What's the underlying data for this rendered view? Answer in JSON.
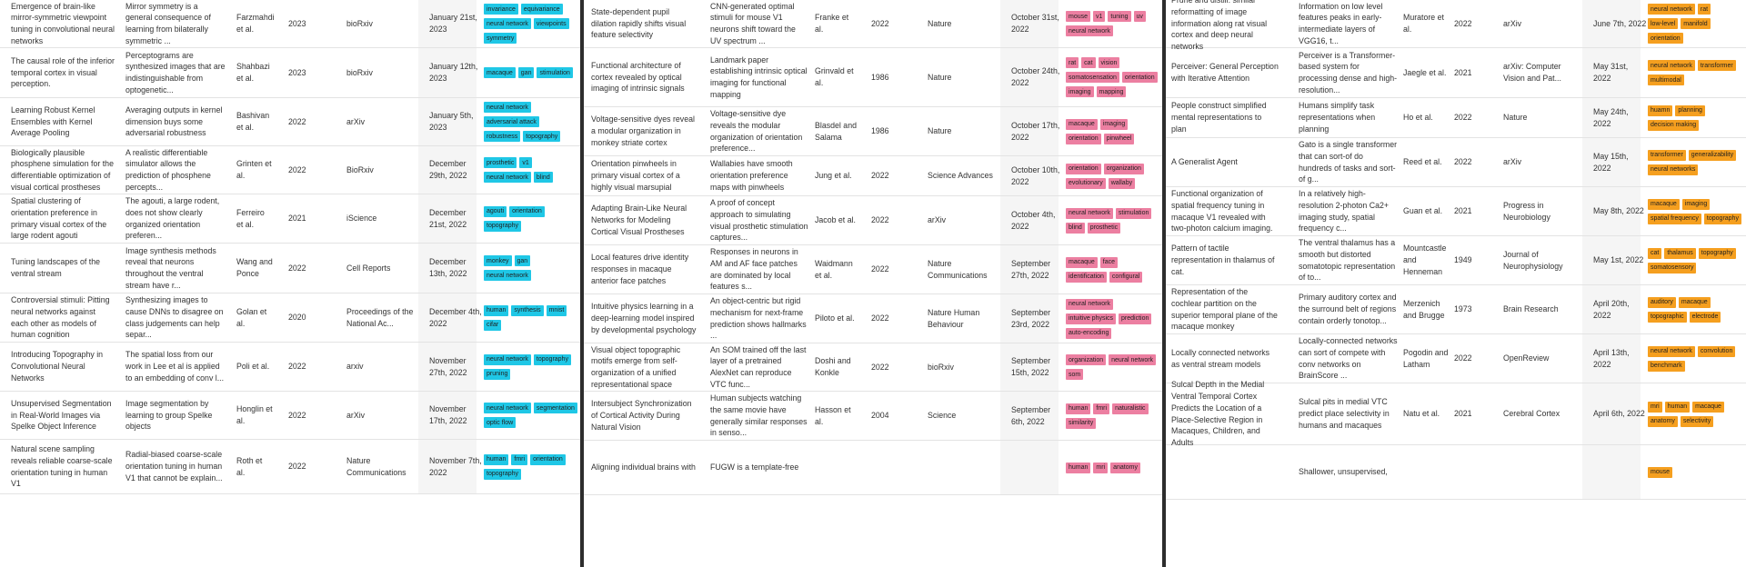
{
  "panels": [
    {
      "tag_color": "#1fc7e6",
      "rows": [
        {
          "title": "Emergence of brain-like mirror-symmetric viewpoint tuning in convolutional neural networks",
          "summary": "Mirror symmetry is a general consequence of learning from bilaterally symmetric ...",
          "authors": "Farzmahdi et al.",
          "year": "2023",
          "venue": "bioRxiv",
          "date": "January 21st, 2023",
          "tags": [
            "invariance",
            "equivariance",
            "neural network",
            "viewpoints",
            "symmetry"
          ]
        },
        {
          "title": "The causal role of the inferior temporal cortex in visual perception.",
          "summary": "Perceptograms are synthesized images that are indistinguishable from optogenetic...",
          "authors": "Shahbazi et al.",
          "year": "2023",
          "venue": "bioRxiv",
          "date": "January 12th, 2023",
          "tags": [
            "macaque",
            "gan",
            "stimulation"
          ]
        },
        {
          "title": "Learning Robust Kernel Ensembles with Kernel Average Pooling",
          "summary": "Averaging outputs in kernel dimension buys some adversarial robustness",
          "authors": "Bashivan et al.",
          "year": "2022",
          "venue": "arXiv",
          "date": "January 5th, 2023",
          "tags": [
            "neural network",
            "adversarial attack",
            "robustness",
            "topography"
          ]
        },
        {
          "title": "Biologically plausible phosphene simulation for the differentiable optimization of visual cortical prostheses",
          "summary": "A realistic differentiable simulator allows the prediction of phosphene percepts...",
          "authors": "Grinten et al.",
          "year": "2022",
          "venue": "BioRxiv",
          "date": "December 29th, 2022",
          "tags": [
            "prosthetic",
            "v1",
            "neural network",
            "blind"
          ]
        },
        {
          "title": "Spatial clustering of orientation preference in primary visual cortex of the large rodent agouti",
          "summary": "The agouti, a large rodent, does not show clearly organized orientation preferen...",
          "authors": "Ferreiro et al.",
          "year": "2021",
          "venue": "iScience",
          "date": "December 21st, 2022",
          "tags": [
            "agouti",
            "orientation",
            "topography"
          ]
        },
        {
          "title": "Tuning landscapes of the ventral stream",
          "summary": "Image synthesis methods reveal that neurons throughout the ventral stream have r...",
          "authors": "Wang and Ponce",
          "year": "2022",
          "venue": "Cell Reports",
          "date": "December 13th, 2022",
          "tags": [
            "monkey",
            "gan",
            "neural network"
          ]
        },
        {
          "title": "Controversial stimuli: Pitting neural networks against each other as models of human cognition",
          "summary": "Synthesizing images to cause DNNs to disagree on class judgements can help separ...",
          "authors": "Golan et al.",
          "year": "2020",
          "venue": "Proceedings of the National Ac...",
          "date": "December 4th, 2022",
          "tags": [
            "human",
            "synthesis",
            "mnist",
            "cifar"
          ]
        },
        {
          "title": "Introducing Topography in Convolutional Neural Networks",
          "summary": "The spatial loss from our work in Lee et al is applied to an embedding of conv l...",
          "authors": "Poli et al.",
          "year": "2022",
          "venue": "arxiv",
          "date": "November 27th, 2022",
          "tags": [
            "neural network",
            "topography",
            "pruning"
          ]
        },
        {
          "title": "Unsupervised Segmentation in Real-World Images via Spelke Object Inference",
          "summary": "Image segmentation by learning to group Spelke objects",
          "authors": "Honglin et al.",
          "year": "2022",
          "venue": "arXiv",
          "date": "November 17th, 2022",
          "tags": [
            "neural network",
            "segmentation",
            "optic flow"
          ]
        },
        {
          "title": "Natural scene sampling reveals reliable coarse-scale orientation tuning in human V1",
          "summary": "Radial-biased coarse-scale orientation tuning in human V1 that cannot be explain...",
          "authors": "Roth et al.",
          "year": "2022",
          "venue": "Nature Communications",
          "date": "November 7th, 2022",
          "tags": [
            "human",
            "fmri",
            "orientation",
            "topography"
          ]
        }
      ]
    },
    {
      "tag_color": "#ec7fa1",
      "rows": [
        {
          "title": "State-dependent pupil dilation rapidly shifts visual feature selectivity",
          "summary": "CNN-generated optimal stimuli for mouse V1 neurons shift toward the UV spectrum ...",
          "authors": "Franke et al.",
          "year": "2022",
          "venue": "Nature",
          "date": "October 31st, 2022",
          "tags": [
            "mouse",
            "v1",
            "tuning",
            "uv",
            "neural network"
          ]
        },
        {
          "title": "Functional architecture of cortex revealed by optical imaging of intrinsic signals",
          "summary": "Landmark paper establishing intrinsic optical imaging for functional mapping",
          "authors": "Grinvald et al.",
          "year": "1986",
          "venue": "Nature",
          "date": "October 24th, 2022",
          "tags": [
            "rat",
            "cat",
            "vision",
            "somatosensation",
            "orientation",
            "imaging",
            "mapping"
          ]
        },
        {
          "title": "Voltage-sensitive dyes reveal a modular organization in monkey striate cortex",
          "summary": "Voltage-sensitive dye reveals the modular organization of orientation preference...",
          "authors": "Blasdel and Salama",
          "year": "1986",
          "venue": "Nature",
          "date": "October 17th, 2022",
          "tags": [
            "macaque",
            "imaging",
            "orientation",
            "pinwheel"
          ]
        },
        {
          "title": "Orientation pinwheels in primary visual cortex of a highly visual marsupial",
          "summary": "Wallabies have smooth orientation preference maps with pinwheels",
          "authors": "Jung et al.",
          "year": "2022",
          "venue": "Science Advances",
          "date": "October 10th, 2022",
          "tags": [
            "orientation",
            "organization",
            "evolutionary",
            "wallaby"
          ]
        },
        {
          "title": "Adapting Brain-Like Neural Networks for Modeling Cortical Visual Prostheses",
          "summary": "A proof of concept approach to simulating visual prosthetic stimulation captures...",
          "authors": "Jacob et al.",
          "year": "2022",
          "venue": "arXiv",
          "date": "October 4th, 2022",
          "tags": [
            "neural network",
            "stimulation",
            "blind",
            "prosthetic"
          ]
        },
        {
          "title": "Local features drive identity responses in macaque anterior face patches",
          "summary": "Responses in neurons in AM and AF face patches are dominated by local features s...",
          "authors": "Waidmann et al.",
          "year": "2022",
          "venue": "Nature Communications",
          "date": "September 27th, 2022",
          "tags": [
            "macaque",
            "face",
            "identification",
            "configural"
          ]
        },
        {
          "title": "Intuitive physics learning in a deep-learning model inspired by developmental psychology",
          "summary": "An object-centric but rigid mechanism for next-frame prediction shows hallmarks ...",
          "authors": "Piloto et al.",
          "year": "2022",
          "venue": "Nature Human Behaviour",
          "date": "September 23rd, 2022",
          "tags": [
            "neural network",
            "intuitive physics",
            "prediction",
            "auto-encoding"
          ]
        },
        {
          "title": "Visual object topographic motifs emerge from self-organization of a unified representational space",
          "summary": "An SOM trained off the last layer of a pretrained AlexNet can reproduce VTC func...",
          "authors": "Doshi and Konkle",
          "year": "2022",
          "venue": "bioRxiv",
          "date": "September 15th, 2022",
          "tags": [
            "organization",
            "neural network",
            "som"
          ]
        },
        {
          "title": "Intersubject Synchronization of Cortical Activity During Natural Vision",
          "summary": "Human subjects watching the same movie have generally similar responses in senso...",
          "authors": "Hasson et al.",
          "year": "2004",
          "venue": "Science",
          "date": "September 6th, 2022",
          "tags": [
            "human",
            "fmri",
            "naturalistic",
            "similarity"
          ]
        },
        {
          "title": "Aligning individual brains with",
          "summary": "FUGW is a template-free",
          "authors": "",
          "year": "",
          "venue": "",
          "date": "",
          "tags": [
            "human",
            "mri",
            "anatomy"
          ]
        }
      ]
    },
    {
      "tag_color": "#f59f1f",
      "rows": [
        {
          "title": "Prune and distill: similar reformatting of image information along rat visual cortex and deep neural networks",
          "summary": "Information on low level features peaks in early-intermediate layers of VGG16, t...",
          "authors": "Muratore et al.",
          "year": "2022",
          "venue": "arXiv",
          "date": "June 7th, 2022",
          "tags": [
            "neural network",
            "rat",
            "low-level",
            "manifold",
            "orientation"
          ]
        },
        {
          "title": "Perceiver: General Perception with Iterative Attention",
          "summary": "Perceiver is a Transformer-based system for processing dense and high-resolution...",
          "authors": "Jaegle et al.",
          "year": "2021",
          "venue": "arXiv: Computer Vision and Pat...",
          "date": "May 31st, 2022",
          "tags": [
            "neural network",
            "transformer",
            "multimodal"
          ]
        },
        {
          "title": "People construct simplified mental representations to plan",
          "summary": "Humans simplify task representations when planning",
          "authors": "Ho et al.",
          "year": "2022",
          "venue": "Nature",
          "date": "May 24th, 2022",
          "tags": [
            "huamn",
            "planning",
            "decision making"
          ]
        },
        {
          "title": "A Generalist Agent",
          "summary": "Gato is a single transformer that can sort-of do hundreds of tasks and sort-of g...",
          "authors": "Reed et al.",
          "year": "2022",
          "venue": "arXiv",
          "date": "May 15th, 2022",
          "tags": [
            "transformer",
            "generalizability",
            "neural networks"
          ]
        },
        {
          "title": "Functional organization of spatial frequency tuning in macaque V1 revealed with two-photon calcium imaging.",
          "summary": "In a relatively high-resolution 2-photon Ca2+ imaging study, spatial frequency c...",
          "authors": "Guan et al.",
          "year": "2021",
          "venue": "Progress in Neurobiology",
          "date": "May 8th, 2022",
          "tags": [
            "macaque",
            "imaging",
            "spatial frequency",
            "topography"
          ]
        },
        {
          "title": "Pattern of tactile representation in thalamus of cat.",
          "summary": "The ventral thalamus has a smooth but distorted somatotopic representation of to...",
          "authors": "Mountcastle and Henneman",
          "year": "1949",
          "venue": "Journal of Neurophysiology",
          "date": "May 1st, 2022",
          "tags": [
            "cat",
            "thalamus",
            "topography",
            "somatosensory"
          ]
        },
        {
          "title": "Representation of the cochlear partition on the superior temporal plane of the macaque monkey",
          "summary": "Primary auditory cortex and the surround belt of regions contain orderly tonotop...",
          "authors": "Merzenich and Brugge",
          "year": "1973",
          "venue": "Brain Research",
          "date": "April 20th, 2022",
          "tags": [
            "auditory",
            "macaque",
            "topographic",
            "electrode"
          ]
        },
        {
          "title": "Locally connected networks as ventral stream models",
          "summary": "Locally-connected networks can sort of compete with conv networks on BrainScore ...",
          "authors": "Pogodin and Latham",
          "year": "2022",
          "venue": "OpenReview",
          "date": "April 13th, 2022",
          "tags": [
            "neural network",
            "convolution",
            "benchmark"
          ]
        },
        {
          "title": "Sulcal Depth in the Medial Ventral Temporal Cortex Predicts the Location of a Place-Selective Region in Macaques, Children, and Adults",
          "summary": "Sulcal pits in medial VTC predict place selectivity in humans and macaques",
          "authors": "Natu et al.",
          "year": "2021",
          "venue": "Cerebral Cortex",
          "date": "April 6th, 2022",
          "tags": [
            "mri",
            "human",
            "macaque",
            "anatomy",
            "selectivity"
          ]
        },
        {
          "title": "",
          "summary": "Shallower, unsupervised,",
          "authors": "",
          "year": "",
          "venue": "",
          "date": "",
          "tags": [
            "mouse"
          ]
        }
      ]
    }
  ]
}
